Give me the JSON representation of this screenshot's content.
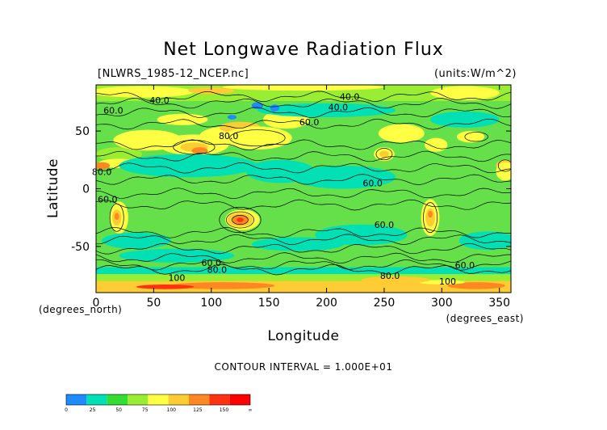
{
  "chart_data": {
    "type": "heatmap",
    "title": "Net Longwave Radiation Flux",
    "dataset": "[NLWRS_1985-12_NCEP.nc]",
    "units": "(units:W/m^2)",
    "xlabel": "Longitude",
    "ylabel": "Latitude",
    "x_unit_label": "(degrees_east)",
    "y_unit_label": "(degrees_north)",
    "xlim": [
      0,
      360
    ],
    "ylim": [
      -90,
      90
    ],
    "x_ticks": [
      "0",
      "50",
      "100",
      "150",
      "200",
      "250",
      "300",
      "350"
    ],
    "x_tick_values": [
      0,
      50,
      100,
      150,
      200,
      250,
      300,
      350
    ],
    "y_ticks": [
      "50",
      "0",
      "-50"
    ],
    "y_tick_values": [
      50,
      0,
      -50
    ],
    "contour_interval": "CONTOUR INTERVAL = 1.000E+01",
    "contour_labels": [
      {
        "text": "40.0",
        "lon": 55,
        "lat": 74
      },
      {
        "text": "40.0",
        "lon": 210,
        "lat": 68
      },
      {
        "text": "40.0",
        "lon": 220,
        "lat": 77
      },
      {
        "text": "60.0",
        "lon": 185,
        "lat": 55
      },
      {
        "text": "60.0",
        "lon": 15,
        "lat": 65
      },
      {
        "text": "80.0",
        "lon": 115,
        "lat": 43
      },
      {
        "text": "80.0",
        "lon": 5,
        "lat": 12
      },
      {
        "text": "60.0",
        "lon": 10,
        "lat": -12
      },
      {
        "text": "60.0",
        "lon": 240,
        "lat": 2
      },
      {
        "text": "60.0",
        "lon": 250,
        "lat": -34
      },
      {
        "text": "60.0",
        "lon": 100,
        "lat": -67
      },
      {
        "text": "80.0",
        "lon": 105,
        "lat": -73
      },
      {
        "text": "100",
        "lon": 70,
        "lat": -80
      },
      {
        "text": "60.0",
        "lon": 320,
        "lat": -69
      },
      {
        "text": "80.0",
        "lon": 255,
        "lat": -78
      },
      {
        "text": "100",
        "lon": 305,
        "lat": -83
      }
    ],
    "colorbar": {
      "levels": [
        "0",
        "25",
        "50",
        "75",
        "100",
        "125",
        "150",
        "∞"
      ],
      "colors": [
        "#1e8bff",
        "#00e0b4",
        "#33dd33",
        "#99ee33",
        "#ffff44",
        "#ffcc33",
        "#ff8822",
        "#ff3311",
        "#ff0000"
      ]
    },
    "color_levels": [
      0,
      25,
      50,
      75,
      100,
      125,
      150,
      175
    ]
  }
}
